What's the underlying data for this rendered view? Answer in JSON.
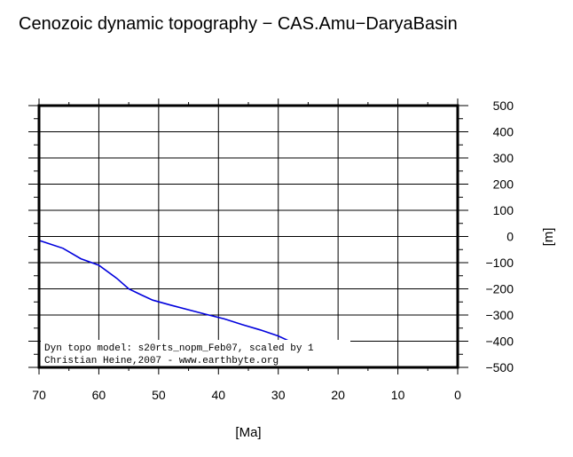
{
  "chart_data": {
    "type": "line",
    "title": "Cenozoic dynamic topography − CAS.Amu−DaryaBasin",
    "xlabel": "[Ma]",
    "ylabel": "[m]",
    "xlim": [
      70,
      0
    ],
    "ylim": [
      -500,
      500
    ],
    "x_ticks": [
      70,
      60,
      50,
      40,
      30,
      20,
      10,
      0
    ],
    "y_ticks": [
      500,
      400,
      300,
      200,
      100,
      0,
      -100,
      -200,
      -300,
      -400,
      -500
    ],
    "x_tick_labels": [
      "70",
      "60",
      "50",
      "40",
      "30",
      "20",
      "10",
      "0"
    ],
    "y_tick_labels": [
      "500",
      "400",
      "300",
      "200",
      "100",
      "0",
      "−100",
      "−200",
      "−300",
      "−400",
      "−500"
    ],
    "grid": true,
    "y_axis_side": "right",
    "line_color": "#0000dd",
    "series": [
      {
        "x": [
          70,
          66,
          63,
          60,
          57,
          55,
          53,
          51,
          48,
          45,
          42,
          39,
          36,
          33,
          30,
          27,
          24,
          21,
          19.5
        ],
        "y": [
          -15,
          -45,
          -85,
          -110,
          -160,
          -200,
          -222,
          -243,
          -262,
          -280,
          -298,
          -315,
          -337,
          -357,
          -380,
          -412,
          -445,
          -480,
          -500
        ]
      }
    ],
    "annotation": [
      "Dyn topo model: s20rts_nopm_Feb07, scaled by 1",
      "Christian Heine,2007 - www.earthbyte.org"
    ]
  }
}
